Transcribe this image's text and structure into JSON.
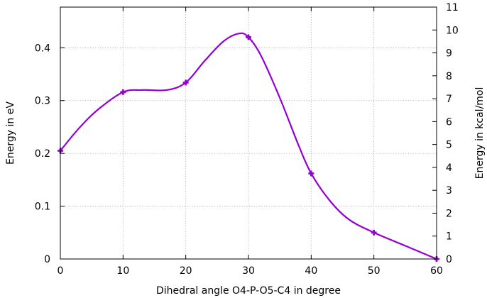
{
  "chart_data": {
    "type": "line",
    "title": "",
    "xlabel": "Dihedral angle O4-P-O5-C4 in degree",
    "ylabel": "Energy in eV",
    "y2label": "Energy in kcal/mol",
    "xlim": [
      0,
      60
    ],
    "ylim": [
      0,
      0.477
    ],
    "y2lim": [
      0,
      11
    ],
    "x_ticks": [
      "0",
      "10",
      "20",
      "30",
      "40",
      "50",
      "60"
    ],
    "y_ticks": [
      "0",
      "0.1",
      "0.2",
      "0.3",
      "0.4"
    ],
    "y2_ticks": [
      "0",
      "1",
      "2",
      "3",
      "4",
      "5",
      "6",
      "7",
      "8",
      "9",
      "10",
      "11"
    ],
    "x_tick_values": [
      0,
      10,
      20,
      30,
      40,
      50,
      60
    ],
    "y_tick_values": [
      0,
      0.1,
      0.2,
      0.3,
      0.4
    ],
    "y2_tick_values": [
      0,
      1,
      2,
      3,
      4,
      5,
      6,
      7,
      8,
      9,
      10,
      11
    ],
    "grid": true,
    "color": "#9400d3",
    "series": [
      {
        "x": [
          0,
          10,
          20,
          30,
          40,
          50,
          60
        ],
        "y": [
          0.205,
          0.316,
          0.334,
          0.42,
          0.162,
          0.05,
          0.0
        ],
        "curve": [
          [
            0,
            0.205
          ],
          [
            3,
            0.248
          ],
          [
            6,
            0.283
          ],
          [
            10,
            0.316
          ],
          [
            13,
            0.32
          ],
          [
            17,
            0.32
          ],
          [
            20,
            0.334
          ],
          [
            23,
            0.375
          ],
          [
            26,
            0.412
          ],
          [
            28.5,
            0.427
          ],
          [
            30,
            0.42
          ],
          [
            32,
            0.385
          ],
          [
            35,
            0.305
          ],
          [
            38,
            0.215
          ],
          [
            40,
            0.162
          ],
          [
            43,
            0.11
          ],
          [
            46,
            0.075
          ],
          [
            50,
            0.05
          ],
          [
            55,
            0.025
          ],
          [
            60,
            0.0
          ]
        ]
      }
    ]
  }
}
